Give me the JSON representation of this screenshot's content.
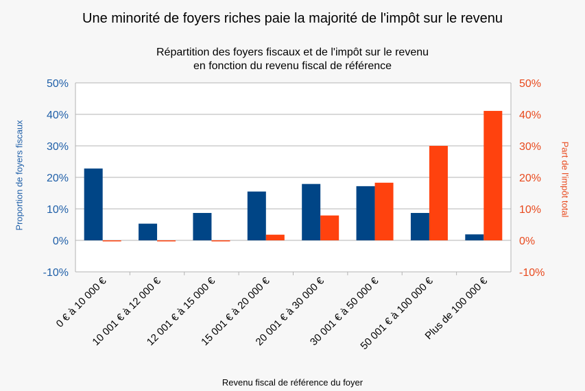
{
  "chart_data": {
    "type": "bar",
    "title": "Une minorité de foyers riches paie la majorité de l'impôt sur le revenu",
    "subtitle_lines": [
      "Répartition des foyers fiscaux et de l'impôt sur le revenu",
      "en fonction du revenu fiscal de référence"
    ],
    "xlabel": "Revenu fiscal de référence du foyer",
    "ylabel_left": "Proportion de foyers fiscaux",
    "ylabel_right": "Part de l'impôt total",
    "ylim": [
      -10,
      50
    ],
    "yticks": [
      "-10%",
      "0%",
      "10%",
      "20%",
      "30%",
      "40%",
      "50%"
    ],
    "ytick_values": [
      -10,
      0,
      10,
      20,
      30,
      40,
      50
    ],
    "categories": [
      "0 € à 10 000 €",
      "10 001 € à 12 000 €",
      "12 001 € à 15 000  €",
      "15 001 € à 20 000 €",
      "20 001 € à 30 000 €",
      "30 001 € à 50 000 €",
      "50 001 € à 100 000 €",
      "Plus de 100 000 €"
    ],
    "series": [
      {
        "values": [
          22.8,
          5.3,
          8.7,
          15.5,
          17.9,
          17.2,
          8.7,
          1.9
        ],
        "color": "#004586",
        "axis": "left"
      },
      {
        "values": [
          -0.3,
          -0.3,
          -0.3,
          1.8,
          7.9,
          18.3,
          30.0,
          41.1
        ],
        "color": "#ff420e",
        "axis": "right"
      }
    ],
    "grid": true,
    "left_axis_color": "#1f5fa8",
    "right_axis_color": "#e8491d"
  }
}
